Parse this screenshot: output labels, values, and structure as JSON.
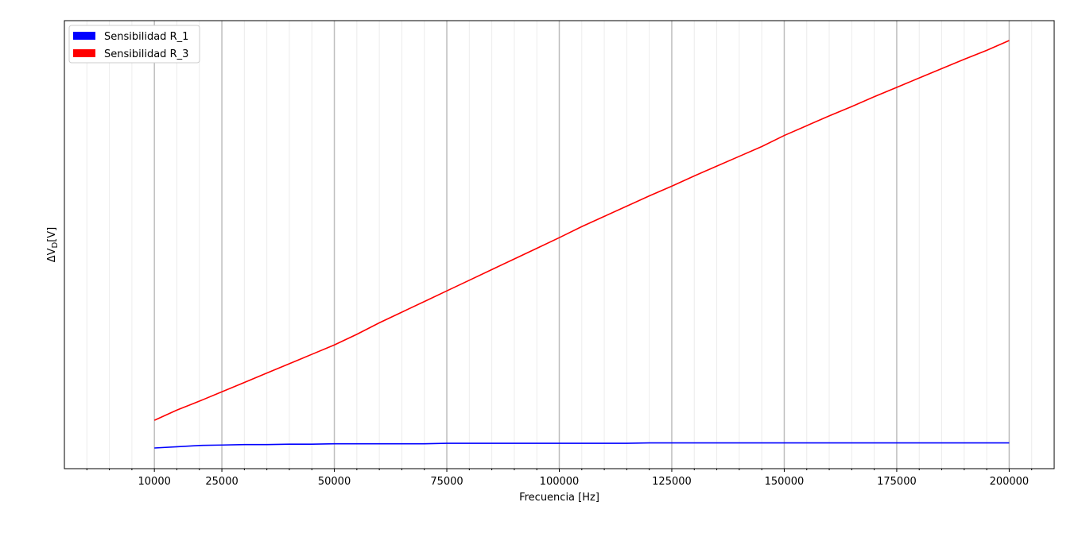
{
  "chart_data": {
    "type": "line",
    "title": "",
    "xlabel": "Frecuencia [Hz]",
    "ylabel": "ΔV_D[V]",
    "xlim": [
      -10000,
      210000
    ],
    "ylim": [
      0,
      1
    ],
    "xticks": [
      10000,
      25000,
      50000,
      75000,
      100000,
      125000,
      150000,
      175000,
      200000
    ],
    "xtick_labels": [
      "10000",
      "25000",
      "50000",
      "75000",
      "100000",
      "125000",
      "150000",
      "175000",
      "200000"
    ],
    "yticks_shown": false,
    "grid": "vertical major and minor lines",
    "legend_position": "top-left",
    "x": [
      10000,
      15000,
      20000,
      25000,
      30000,
      35000,
      40000,
      45000,
      50000,
      55000,
      60000,
      65000,
      70000,
      75000,
      80000,
      85000,
      90000,
      95000,
      100000,
      105000,
      110000,
      115000,
      120000,
      125000,
      130000,
      135000,
      140000,
      145000,
      150000,
      155000,
      160000,
      165000,
      170000,
      175000,
      180000,
      185000,
      190000,
      195000,
      200000
    ],
    "series": [
      {
        "name": "Sensibilidad R_1",
        "color": "#0000ff",
        "values": [
          0.048,
          0.051,
          0.054,
          0.055,
          0.056,
          0.056,
          0.057,
          0.057,
          0.058,
          0.058,
          0.058,
          0.058,
          0.058,
          0.059,
          0.059,
          0.059,
          0.059,
          0.059,
          0.059,
          0.059,
          0.059,
          0.059,
          0.06,
          0.06,
          0.06,
          0.06,
          0.06,
          0.06,
          0.06,
          0.06,
          0.06,
          0.06,
          0.06,
          0.06,
          0.06,
          0.06,
          0.06,
          0.06,
          0.06
        ]
      },
      {
        "name": "Sensibilidad R_3",
        "color": "#ff0000",
        "values": [
          0.113,
          0.137,
          0.158,
          0.18,
          0.202,
          0.224,
          0.246,
          0.268,
          0.29,
          0.315,
          0.342,
          0.367,
          0.392,
          0.417,
          0.442,
          0.467,
          0.492,
          0.517,
          0.542,
          0.568,
          0.592,
          0.616,
          0.64,
          0.663,
          0.687,
          0.71,
          0.733,
          0.756,
          0.782,
          0.805,
          0.828,
          0.85,
          0.873,
          0.895,
          0.917,
          0.939,
          0.961,
          0.982,
          1.005
        ]
      }
    ]
  }
}
